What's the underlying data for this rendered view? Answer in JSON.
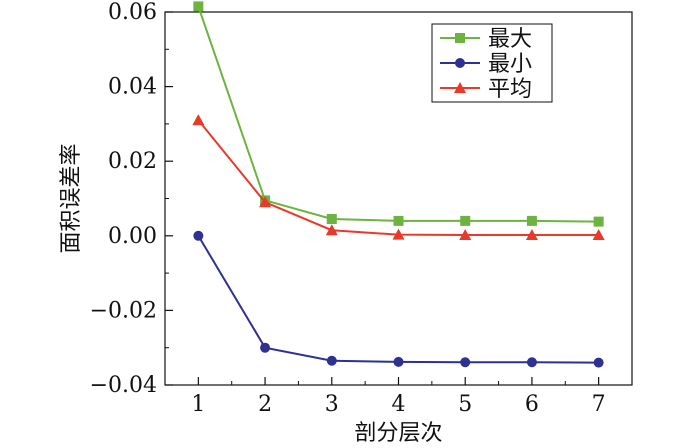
{
  "chart_data": {
    "type": "line",
    "title": "",
    "xlabel": "剖分层次",
    "ylabel": "面积误差率",
    "x": [
      1,
      2,
      3,
      4,
      5,
      6,
      7
    ],
    "x_ticks": [
      "1",
      "2",
      "3",
      "4",
      "5",
      "6",
      "7"
    ],
    "xlim": [
      0.5,
      7.5
    ],
    "ylim": [
      -0.04,
      0.06
    ],
    "y_ticks": [
      0.06,
      0.04,
      0.02,
      0.0,
      -0.02,
      -0.04
    ],
    "y_tick_labels": [
      "0.06",
      "0.04",
      "0.02",
      "0.00",
      "−0.02",
      "−0.04"
    ],
    "grid": false,
    "legend_position": "top-right",
    "series": [
      {
        "name": "最大",
        "color": "#6db33f",
        "marker": "square",
        "values": [
          0.0615,
          0.0095,
          0.0045,
          0.004,
          0.004,
          0.004,
          0.0038
        ]
      },
      {
        "name": "最小",
        "color": "#2e3192",
        "marker": "circle",
        "values": [
          0.0,
          -0.03,
          -0.0335,
          -0.0338,
          -0.0339,
          -0.0339,
          -0.034
        ]
      },
      {
        "name": "平均",
        "color": "#e8392b",
        "marker": "triangle",
        "values": [
          0.031,
          0.009,
          0.0015,
          0.0003,
          0.0002,
          0.0002,
          0.0002
        ]
      }
    ]
  }
}
